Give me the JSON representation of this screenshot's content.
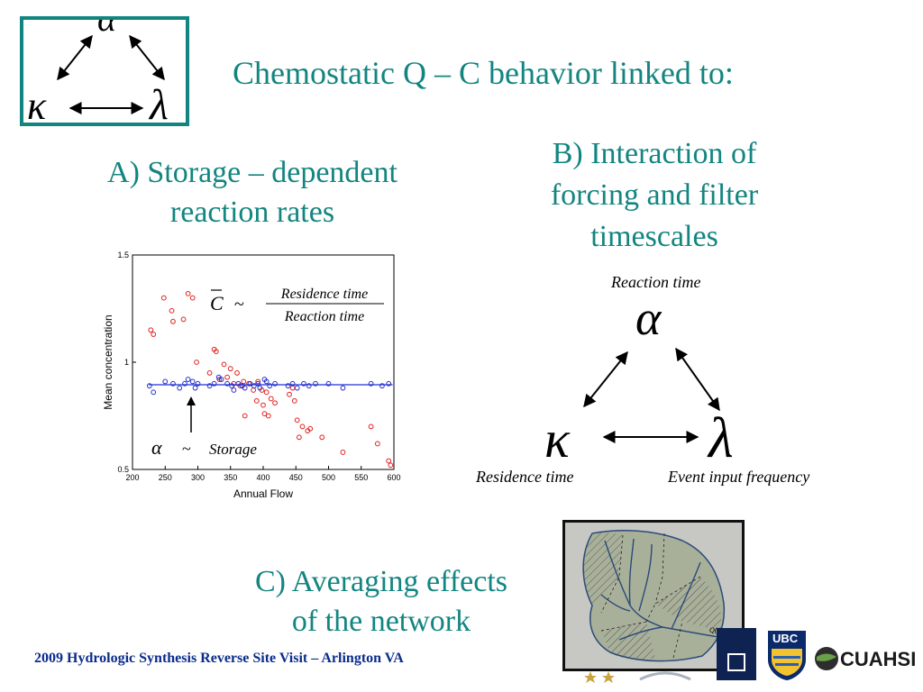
{
  "title": "Chemostatic Q – C behavior linked to:",
  "section_a": {
    "line1": "A) Storage – dependent",
    "line2": "reaction rates"
  },
  "section_b": {
    "line1": "B) Interaction of",
    "line2": "forcing and filter",
    "line3": "timescales"
  },
  "section_c": {
    "line1": "C) Averaging effects",
    "line2": "of the network"
  },
  "triangle": {
    "top_symbol": "α",
    "left_symbol": "κ",
    "right_symbol": "λ",
    "top_label": "Reaction time",
    "left_label": "Residence time",
    "right_label": "Event input frequency"
  },
  "chart_data": {
    "type": "scatter",
    "xlabel": "Annual Flow",
    "ylabel": "Mean concentration",
    "xlim": [
      200,
      600
    ],
    "ylim": [
      0.5,
      1.5
    ],
    "xticks": [
      200,
      250,
      300,
      350,
      400,
      450,
      500,
      550,
      600
    ],
    "yticks": [
      0.5,
      1,
      1.5
    ],
    "ytick_labels": [
      "0.5",
      "1",
      "1.5"
    ],
    "grid": false,
    "series": [
      {
        "color": "#e02020",
        "points": [
          [
            228,
            1.15
          ],
          [
            232,
            1.13
          ],
          [
            248,
            1.3
          ],
          [
            260,
            1.24
          ],
          [
            262,
            1.19
          ],
          [
            278,
            1.2
          ],
          [
            285,
            1.32
          ],
          [
            292,
            1.3
          ],
          [
            298,
            1.0
          ],
          [
            318,
            0.95
          ],
          [
            325,
            1.06
          ],
          [
            328,
            1.05
          ],
          [
            333,
            0.92
          ],
          [
            340,
            0.99
          ],
          [
            345,
            0.93
          ],
          [
            350,
            0.97
          ],
          [
            355,
            0.9
          ],
          [
            360,
            0.95
          ],
          [
            365,
            0.89
          ],
          [
            370,
            0.91
          ],
          [
            372,
            0.75
          ],
          [
            378,
            0.9
          ],
          [
            385,
            0.87
          ],
          [
            390,
            0.82
          ],
          [
            392,
            0.91
          ],
          [
            398,
            0.87
          ],
          [
            400,
            0.8
          ],
          [
            402,
            0.76
          ],
          [
            405,
            0.86
          ],
          [
            408,
            0.75
          ],
          [
            412,
            0.83
          ],
          [
            418,
            0.81
          ],
          [
            440,
            0.85
          ],
          [
            445,
            0.88
          ],
          [
            448,
            0.82
          ],
          [
            452,
            0.73
          ],
          [
            455,
            0.65
          ],
          [
            460,
            0.7
          ],
          [
            468,
            0.68
          ],
          [
            472,
            0.69
          ],
          [
            490,
            0.65
          ],
          [
            522,
            0.58
          ],
          [
            565,
            0.7
          ],
          [
            575,
            0.62
          ],
          [
            592,
            0.54
          ],
          [
            595,
            0.52
          ]
        ]
      },
      {
        "color": "#2030d0",
        "points": [
          [
            226,
            0.89
          ],
          [
            232,
            0.86
          ],
          [
            250,
            0.91
          ],
          [
            262,
            0.9
          ],
          [
            272,
            0.88
          ],
          [
            280,
            0.9
          ],
          [
            285,
            0.92
          ],
          [
            292,
            0.91
          ],
          [
            296,
            0.88
          ],
          [
            300,
            0.9
          ],
          [
            318,
            0.89
          ],
          [
            325,
            0.9
          ],
          [
            332,
            0.93
          ],
          [
            336,
            0.92
          ],
          [
            345,
            0.9
          ],
          [
            352,
            0.89
          ],
          [
            355,
            0.87
          ],
          [
            362,
            0.9
          ],
          [
            368,
            0.89
          ],
          [
            372,
            0.88
          ],
          [
            380,
            0.9
          ],
          [
            386,
            0.89
          ],
          [
            392,
            0.9
          ],
          [
            395,
            0.88
          ],
          [
            402,
            0.92
          ],
          [
            405,
            0.91
          ],
          [
            410,
            0.89
          ],
          [
            418,
            0.9
          ],
          [
            438,
            0.89
          ],
          [
            445,
            0.9
          ],
          [
            452,
            0.88
          ],
          [
            462,
            0.9
          ],
          [
            470,
            0.89
          ],
          [
            480,
            0.9
          ],
          [
            500,
            0.9
          ],
          [
            522,
            0.88
          ],
          [
            565,
            0.9
          ],
          [
            582,
            0.89
          ],
          [
            592,
            0.9
          ]
        ]
      }
    ],
    "fit_line": {
      "color": "#2030d0",
      "y": 0.895
    },
    "annotation_top": {
      "lhs": "C",
      "op": "~",
      "numerator": "Residence time",
      "denominator": "Reaction time"
    },
    "annotation_bottom": {
      "lhs": "α",
      "op": "~",
      "rhs": "Storage"
    }
  },
  "map": {
    "outlet_label": "Q(t)"
  },
  "footer": "2009 Hydrologic Synthesis Reverse Site Visit – Arlington VA",
  "logos": {
    "ubc": "UBC",
    "cuahsi": "CUAHSI"
  },
  "colors": {
    "teal": "#138580",
    "footer_blue": "#0a2c8c"
  }
}
